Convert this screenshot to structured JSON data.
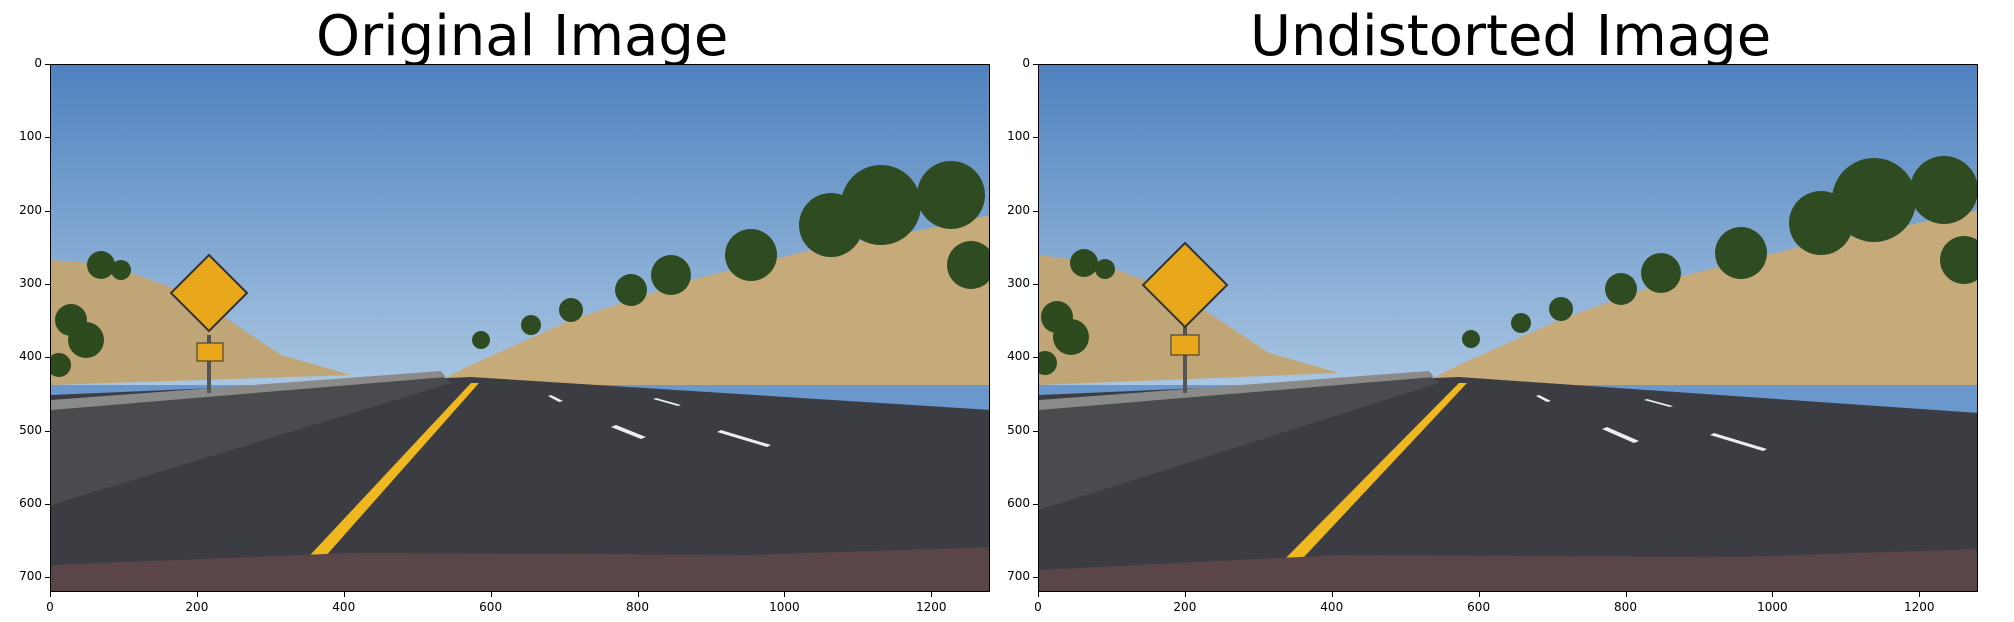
{
  "panels": [
    {
      "title": "Original Image",
      "x_ticks": [
        "0",
        "200",
        "400",
        "600",
        "800",
        "1000",
        "1200"
      ],
      "y_ticks": [
        "0",
        "100",
        "200",
        "300",
        "400",
        "500",
        "600",
        "700"
      ]
    },
    {
      "title": "Undistorted Image",
      "x_ticks": [
        "0",
        "200",
        "400",
        "600",
        "800",
        "1000",
        "1200"
      ],
      "y_ticks": [
        "0",
        "100",
        "200",
        "300",
        "400",
        "500",
        "600",
        "700"
      ]
    }
  ],
  "colors": {
    "sky_top": "#4f82bf",
    "sky_bottom": "#a9c6e2",
    "hill": "#c0a576",
    "road": "#3c3d43",
    "barrier": "#4a4b4e",
    "lane_yellow": "#f0b820",
    "lane_white": "#eeeeee",
    "sign_yellow": "#e9a81b",
    "trees": "#2e4a1f",
    "hood": "#5a4548"
  }
}
